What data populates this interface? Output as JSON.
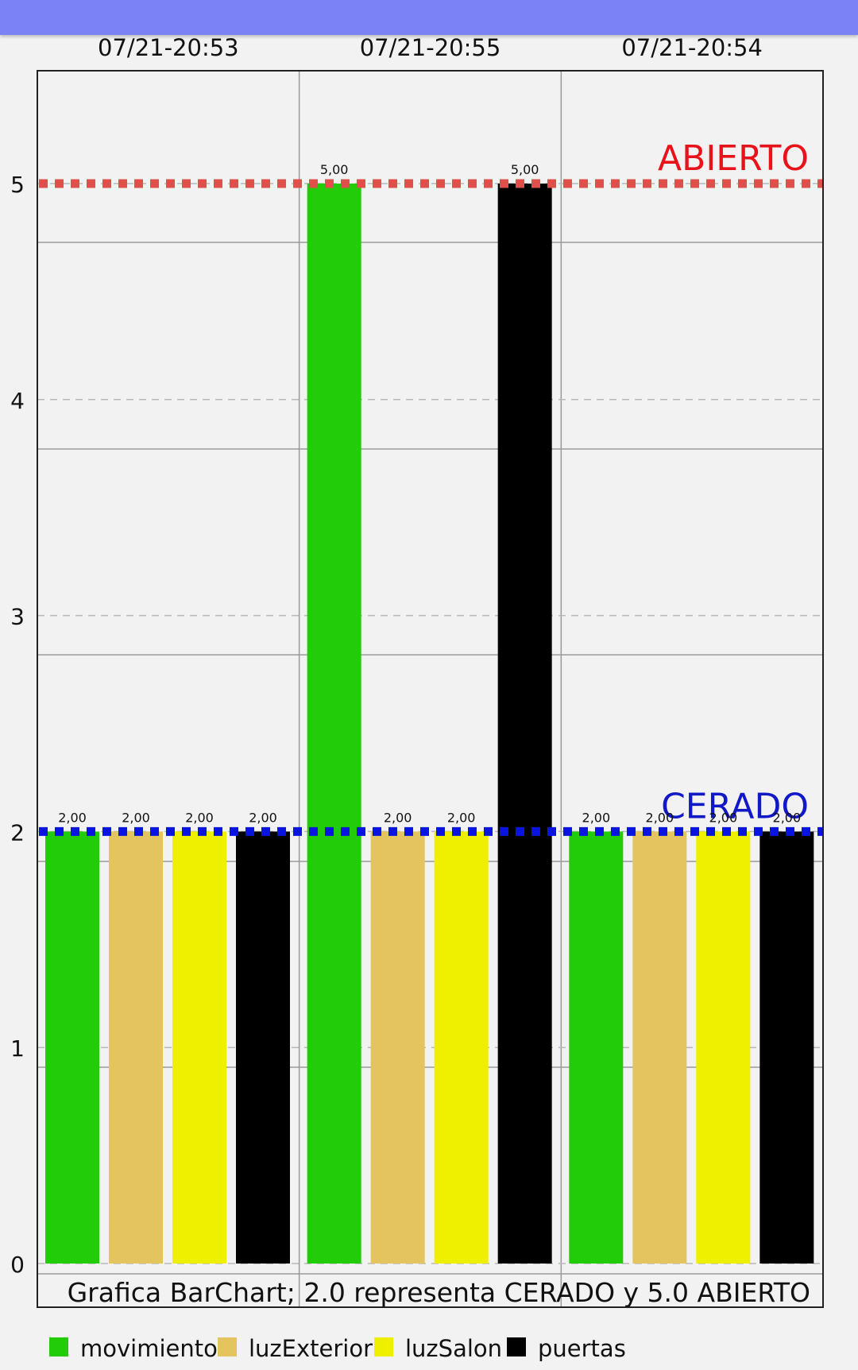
{
  "chart_data": {
    "type": "bar",
    "categories": [
      "07/21-20:53",
      "07/21-20:55",
      "07/21-20:54"
    ],
    "series": [
      {
        "name": "movimiento",
        "color": "#22cc08",
        "values": [
          2.0,
          5.0,
          2.0
        ]
      },
      {
        "name": "luzExterior",
        "color": "#e3c45e",
        "values": [
          2.0,
          2.0,
          2.0
        ]
      },
      {
        "name": "luzSalon",
        "color": "#eef000",
        "values": [
          2.0,
          2.0,
          2.0
        ]
      },
      {
        "name": "puertas",
        "color": "#000000",
        "values": [
          2.0,
          5.0,
          2.0
        ]
      }
    ],
    "value_labels": [
      [
        "2,00",
        "5,00",
        "2,00"
      ],
      [
        "2,00",
        "2,00",
        "2,00"
      ],
      [
        "2,00",
        "2,00",
        "2,00"
      ],
      [
        "2,00",
        "5,00",
        "2,00"
      ]
    ],
    "ylim": [
      0,
      5.5
    ],
    "yticks": [
      "0",
      "1",
      "2",
      "3",
      "4",
      "5"
    ],
    "limit_lines": [
      {
        "value": 5.0,
        "label": "ABIERTO",
        "line_color": "#e0504a",
        "label_color": "#e8121a"
      },
      {
        "value": 2.0,
        "label": "CERADO",
        "line_color": "#0a14e0",
        "label_color": "#1018c8"
      }
    ],
    "description": "Grafica BarChart; 2.0 representa CERADO y 5.0 ABIERTO",
    "legend_position": "bottom-left",
    "grid": true
  }
}
